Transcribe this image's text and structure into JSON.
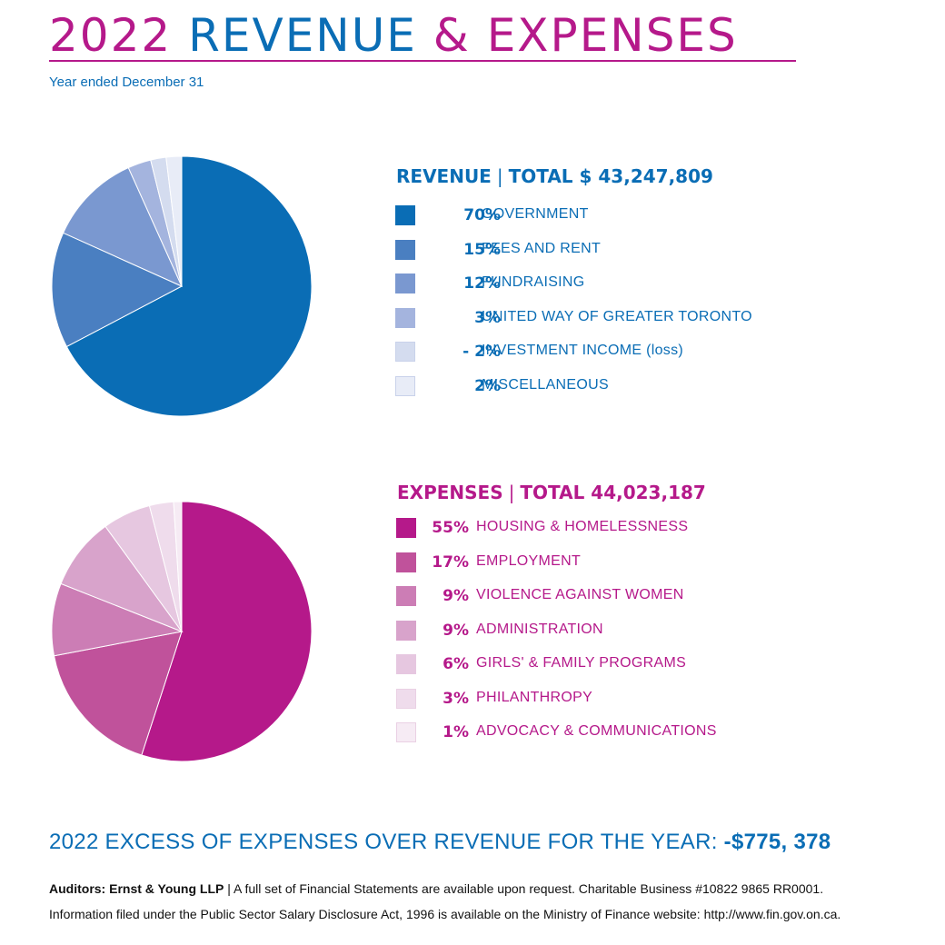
{
  "header": {
    "title_year": "2022",
    "title_words": "REVENUE",
    "title_amp": "&",
    "title_expenses": "EXPENSES",
    "subtitle": "Year ended December 31"
  },
  "colors": {
    "blue": "#0a6db5",
    "magenta": "#b5198a"
  },
  "revenue": {
    "label": "REVENUE",
    "separator": "|",
    "total": "TOTAL $ 43,247,809"
  },
  "expenses": {
    "label": "EXPENSES",
    "separator": "|",
    "total": "TOTAL  44,023,187"
  },
  "chart_data": [
    {
      "type": "pie",
      "title": "REVENUE | TOTAL $ 43,247,809",
      "categories": [
        "GOVERNMENT",
        "FEES AND RENT",
        "FUNDRAISING",
        "UNITED WAY OF GREATER TORONTO",
        "INVESTMENT INCOME (loss)",
        "MISCELLANEOUS"
      ],
      "values": [
        70,
        15,
        12,
        3,
        -2,
        2
      ],
      "value_labels": [
        "70%",
        "15%",
        "12%",
        "3%",
        "- 2%",
        "2%"
      ],
      "colors": [
        "#0a6db5",
        "#4a7fc1",
        "#7a98d0",
        "#a4b4de",
        "#d4dcef",
        "#e8ecf7"
      ],
      "legend_position": "right"
    },
    {
      "type": "pie",
      "title": "EXPENSES | TOTAL 44,023,187",
      "categories": [
        "HOUSING & HOMELESSNESS",
        "EMPLOYMENT",
        "VIOLENCE AGAINST WOMEN",
        "ADMINISTRATION",
        "GIRLS' & FAMILY PROGRAMS",
        "PHILANTHROPY",
        "ADVOCACY & COMMUNICATIONS"
      ],
      "values": [
        55,
        17,
        9,
        9,
        6,
        3,
        1
      ],
      "value_labels": [
        "55%",
        "17%",
        "9%",
        "9%",
        "6%",
        "3%",
        "1%"
      ],
      "colors": [
        "#b5198a",
        "#c0529b",
        "#cc7db5",
        "#d8a3cb",
        "#e6c7e0",
        "#efdcec",
        "#f6ebf4"
      ],
      "legend_position": "right"
    }
  ],
  "excess": {
    "text": "2022 EXCESS OF EXPENSES OVER REVENUE FOR THE YEAR:",
    "amount": "-$775, 378"
  },
  "footer": {
    "auditors": "Auditors: Ernst & Young LLP",
    "line1": " | A full set of Financial Statements are available upon request. Charitable Business #10822 9865 RR0001.",
    "line2": "Information filed under the Public Sector Salary Disclosure Act, 1996 is available on the Ministry of Finance website: http://www.fin.gov.on.ca."
  }
}
